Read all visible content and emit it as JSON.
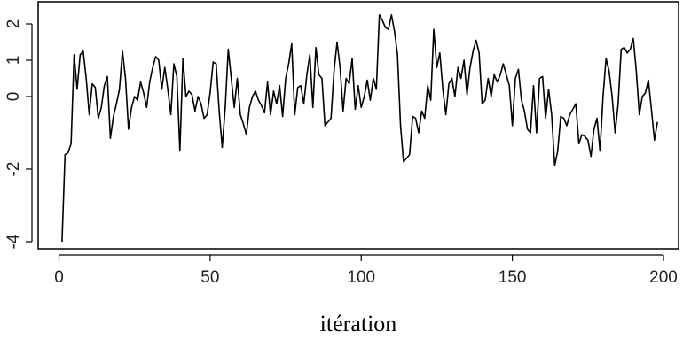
{
  "chart_data": {
    "type": "line",
    "title": "",
    "xlabel": "itération",
    "ylabel": "",
    "xlim": [
      1,
      200
    ],
    "ylim": [
      -4.1,
      2.35
    ],
    "xticks": [
      0,
      50,
      100,
      150,
      200
    ],
    "xtick_labels": [
      "0",
      "50",
      "100",
      "150",
      "200"
    ],
    "yticks": [
      -4,
      -2,
      0,
      1,
      2
    ],
    "ytick_labels": [
      "-4",
      "-2",
      "0",
      "1",
      "2"
    ],
    "grid": false,
    "legend": "none",
    "line_color": "#000000",
    "series": [
      {
        "values": [
          -4.0,
          -1.6,
          -1.55,
          -1.3,
          1.15,
          0.2,
          1.15,
          1.25,
          0.5,
          -0.5,
          0.35,
          0.25,
          -0.6,
          -0.3,
          0.3,
          0.55,
          -1.15,
          -0.55,
          -0.2,
          0.2,
          1.25,
          0.5,
          -0.9,
          -0.3,
          0.0,
          -0.1,
          0.4,
          0.1,
          -0.3,
          0.4,
          0.8,
          1.1,
          1.0,
          0.2,
          0.8,
          0.2,
          -0.5,
          0.9,
          0.55,
          -1.5,
          1.05,
          0.0,
          0.15,
          0.05,
          -0.4,
          0.0,
          -0.2,
          -0.6,
          -0.5,
          0.1,
          0.95,
          0.9,
          -0.4,
          -1.4,
          -0.3,
          1.3,
          0.5,
          -0.3,
          0.5,
          -0.5,
          -0.75,
          -1.05,
          -0.3,
          0.0,
          0.15,
          -0.1,
          -0.25,
          -0.45,
          0.4,
          -0.5,
          0.15,
          -0.2,
          0.3,
          -0.55,
          0.5,
          0.9,
          1.45,
          -0.5,
          0.25,
          0.3,
          -0.2,
          0.6,
          1.15,
          -0.3,
          1.35,
          0.6,
          0.5,
          -0.8,
          -0.7,
          -0.6,
          0.7,
          1.5,
          0.8,
          -0.4,
          0.5,
          0.35,
          1.05,
          -0.35,
          0.3,
          -0.3,
          0.0,
          0.45,
          -0.1,
          0.5,
          0.2,
          2.25,
          2.1,
          1.9,
          1.85,
          2.25,
          1.8,
          1.15,
          -0.8,
          -1.8,
          -1.7,
          -1.6,
          -0.55,
          -0.6,
          -1.0,
          -0.4,
          -0.6,
          0.3,
          -0.1,
          1.85,
          0.8,
          1.2,
          0.2,
          -0.5,
          0.35,
          0.5,
          0.0,
          0.8,
          0.5,
          1.0,
          0.05,
          0.8,
          1.25,
          1.55,
          1.2,
          -0.2,
          -0.1,
          0.5,
          0.0,
          0.6,
          0.4,
          0.6,
          0.9,
          0.6,
          0.3,
          -0.8,
          0.5,
          0.75,
          -0.1,
          -0.4,
          -0.9,
          -1.0,
          0.3,
          -1.0,
          0.5,
          0.55,
          -0.6,
          0.2,
          -0.5,
          -1.9,
          -1.5,
          -0.55,
          -0.6,
          -0.8,
          -0.5,
          -0.35,
          -0.2,
          -1.3,
          -1.05,
          -1.1,
          -1.2,
          -1.65,
          -0.9,
          -0.6,
          -1.5,
          0.0,
          1.05,
          0.7,
          0.0,
          -1.0,
          -0.2,
          1.3,
          1.35,
          1.2,
          1.3,
          1.6,
          0.7,
          -0.5,
          0.0,
          0.1,
          0.45,
          -0.35,
          -1.2,
          -0.7
        ]
      }
    ]
  }
}
